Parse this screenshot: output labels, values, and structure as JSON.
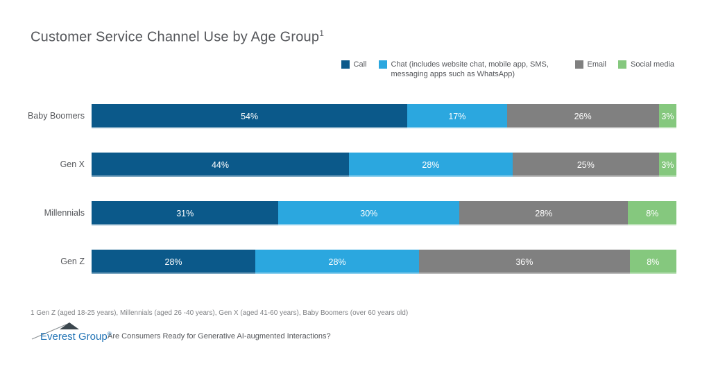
{
  "header": {
    "title": "Customer Service Channel Use by Age Group",
    "title_superscript": "1"
  },
  "colors": {
    "call": "#0B598A",
    "chat": "#2BA7DF",
    "email": "#808080",
    "social_media": "#85C87E",
    "text_gray": "#55575B",
    "logo_blue": "#2173B5"
  },
  "chart_data": {
    "type": "bar",
    "orientation": "horizontal-stacked",
    "title": "Customer Service Channel Use by Age Group",
    "categories": [
      "Baby Boomers",
      "Gen X",
      "Millennials",
      "Gen Z"
    ],
    "series": [
      {
        "name": "Call",
        "color": "#0B598A",
        "values": [
          54,
          44,
          31,
          28
        ]
      },
      {
        "name": "Chat (includes website chat, mobile app, SMS, messaging apps such as WhatsApp)",
        "color": "#2BA7DF",
        "values": [
          17,
          28,
          30,
          28
        ]
      },
      {
        "name": "Email",
        "color": "#808080",
        "values": [
          26,
          25,
          28,
          36
        ]
      },
      {
        "name": "Social media",
        "color": "#85C87E",
        "values": [
          3,
          3,
          8,
          8
        ]
      }
    ],
    "value_suffix": "%",
    "xlim": [
      0,
      100
    ],
    "grid": false,
    "legend_position": "top-right",
    "data_labels": "inside-white"
  },
  "footnote": "1 Gen Z (aged 18-25 years), Millennials (aged 26 -40 years), Gen X (aged 41-60 years), Baby Boomers (over 60 years old)",
  "footer": {
    "logo_text": "Everest Group",
    "logo_registered": "®",
    "source_text": "Are Consumers Ready for Generative AI-augmented Interactions?"
  }
}
